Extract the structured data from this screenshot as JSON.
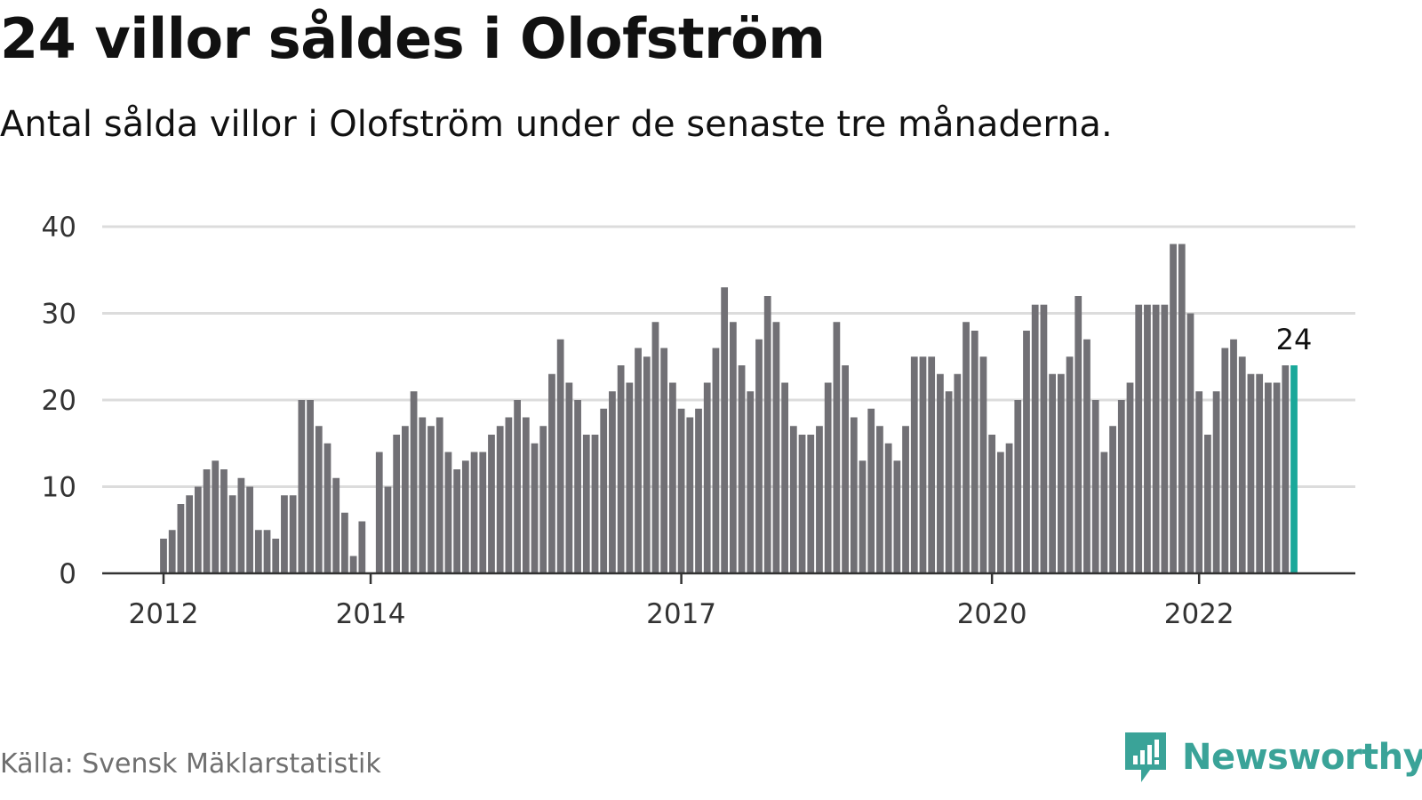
{
  "title": "24 villor såldes i Olofström",
  "subtitle": "Antal sålda villor i Olofström under de senaste tre månaderna.",
  "source": "Källa: Svensk Mäklarstatistik",
  "brand": {
    "name": "Newsworthy",
    "icon": "newsworthy-logo-icon",
    "color": "#3aa398"
  },
  "colors": {
    "bar": "#717075",
    "highlight": "#1aa89a",
    "grid": "#dcdcdc",
    "axis": "#333333"
  },
  "chart_data": {
    "type": "bar",
    "title": "24 villor såldes i Olofström",
    "subtitle": "Antal sålda villor i Olofström under de senaste tre månaderna.",
    "xlabel": "",
    "ylabel": "",
    "ylim": [
      0,
      40
    ],
    "yticks": [
      0,
      10,
      20,
      30,
      40
    ],
    "xticks": [
      "2012",
      "2014",
      "2017",
      "2020",
      "2022"
    ],
    "grid": true,
    "highlight_label": "24",
    "values": [
      4,
      5,
      8,
      9,
      10,
      12,
      13,
      12,
      9,
      11,
      10,
      5,
      5,
      4,
      9,
      9,
      20,
      20,
      17,
      15,
      11,
      7,
      2,
      6,
      0,
      14,
      10,
      16,
      17,
      21,
      18,
      17,
      18,
      14,
      12,
      13,
      14,
      14,
      16,
      17,
      18,
      20,
      18,
      15,
      17,
      23,
      27,
      22,
      20,
      16,
      16,
      19,
      21,
      24,
      22,
      26,
      25,
      29,
      26,
      22,
      19,
      18,
      19,
      22,
      26,
      33,
      29,
      24,
      21,
      27,
      32,
      29,
      22,
      17,
      16,
      16,
      17,
      22,
      29,
      24,
      18,
      13,
      19,
      17,
      15,
      13,
      17,
      25,
      25,
      25,
      23,
      21,
      23,
      29,
      28,
      25,
      16,
      14,
      15,
      20,
      28,
      31,
      31,
      23,
      23,
      25,
      32,
      27,
      20,
      14,
      17,
      20,
      22,
      31,
      31,
      31,
      31,
      38,
      38,
      30,
      21,
      16,
      21,
      26,
      27,
      25,
      23,
      23,
      22,
      22,
      24,
      24
    ]
  }
}
